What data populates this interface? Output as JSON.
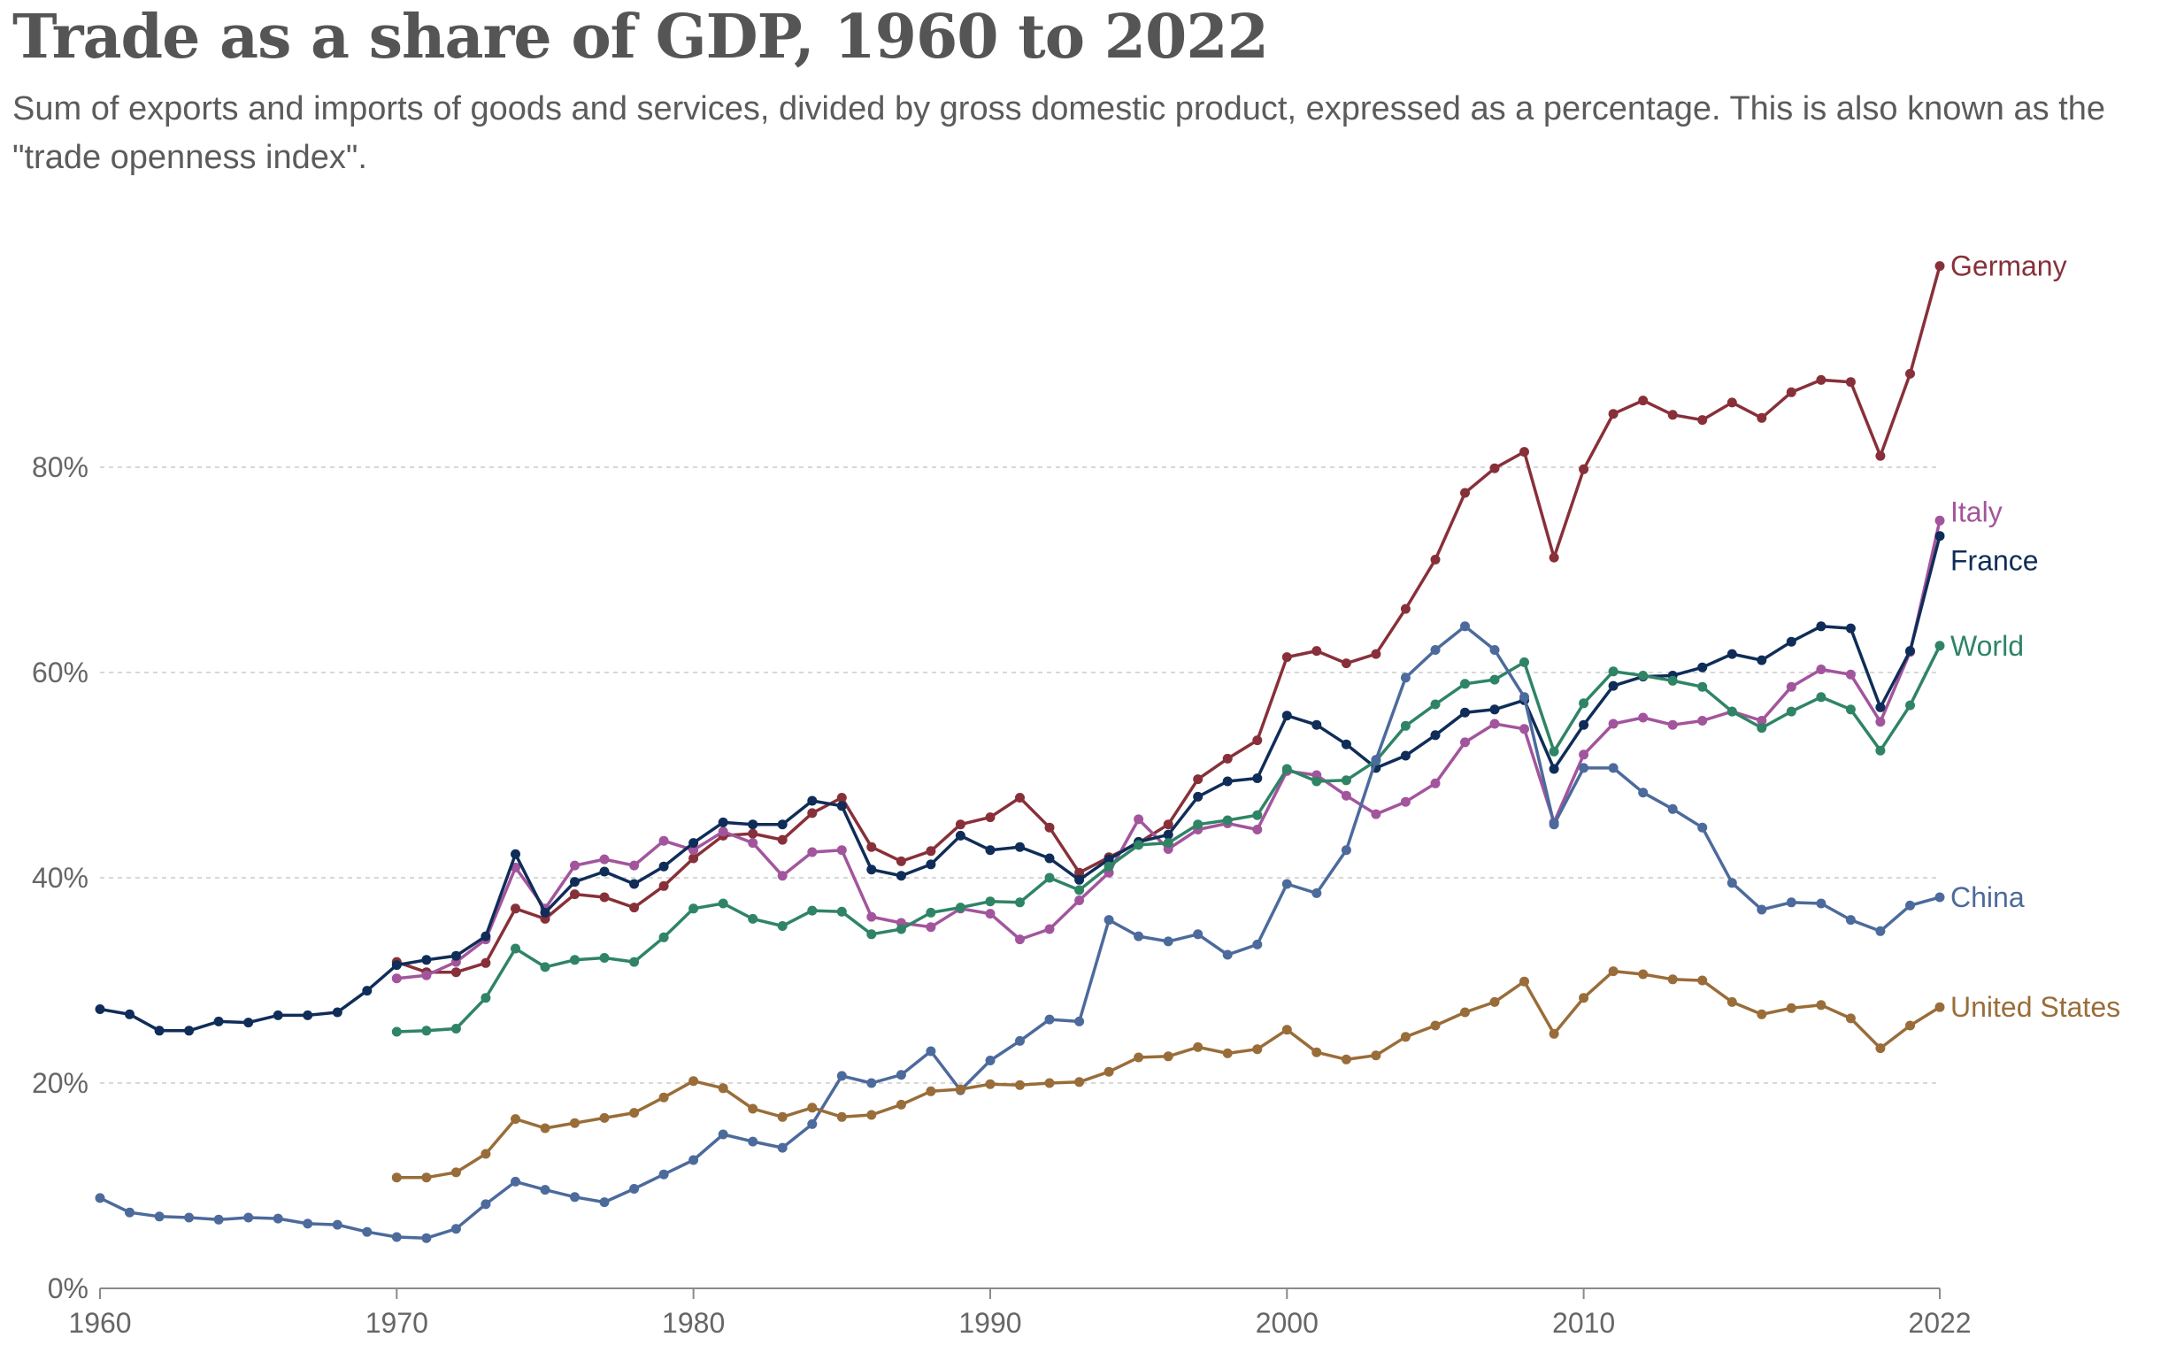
{
  "title": "Trade as a share of GDP, 1960 to 2022",
  "subtitle": "Sum of exports and imports of goods and services, divided by gross domestic product, expressed as a percentage. This is also known as the \"trade openness index\".",
  "chart_data": {
    "type": "line",
    "xlim": [
      1960,
      2022
    ],
    "ylim": [
      0,
      100
    ],
    "x_ticks": [
      1960,
      1970,
      1980,
      1990,
      2000,
      2010,
      2022
    ],
    "y_ticks": [
      0,
      20,
      40,
      60,
      80
    ],
    "y_tick_suffix": "%",
    "grid": "horizontal dashed",
    "legend": "inline labels at line ends (right)",
    "series": [
      {
        "name": "Germany",
        "color": "#883039",
        "start": 1970,
        "values": [
          31.8,
          30.8,
          30.8,
          31.7,
          37,
          36,
          38.4,
          38.1,
          37.1,
          39.2,
          41.9,
          44.1,
          44.3,
          43.7,
          46.3,
          47.8,
          43,
          41.6,
          42.6,
          45.2,
          45.9,
          47.8,
          44.9,
          40.5,
          42,
          43.4,
          45.2,
          49.6,
          51.6,
          53.4,
          61.5,
          62.1,
          60.9,
          61.8,
          66.2,
          71.0,
          77.5,
          79.9,
          81.5,
          71.2,
          79.8,
          85.2,
          86.5,
          85.1,
          84.6,
          86.3,
          84.8,
          87.3,
          88.5,
          88.3,
          81.1,
          89.1,
          99.6
        ]
      },
      {
        "name": "Italy",
        "color": "#a2559c",
        "start": 1970,
        "values": [
          30.2,
          30.5,
          31.8,
          34.0,
          41.0,
          37.0,
          41.2,
          41.8,
          41.2,
          43.6,
          42.7,
          44.5,
          43.4,
          40.2,
          42.5,
          42.7,
          36.2,
          35.6,
          35.2,
          37.0,
          36.5,
          34.0,
          35.0,
          37.8,
          40.5,
          45.7,
          42.8,
          44.7,
          45.3,
          44.7,
          50.4,
          50.0,
          48.0,
          46.2,
          47.4,
          49.2,
          53.2,
          55.0,
          54.5,
          45.4,
          52.0,
          55.0,
          55.6,
          54.9,
          55.3,
          56.2,
          55.3,
          58.6,
          60.3,
          59.8,
          55.2,
          62.0,
          74.8
        ]
      },
      {
        "name": "France",
        "color": "#0f2d58",
        "start": 1960,
        "values": [
          27.2,
          26.7,
          25.1,
          25.1,
          26.0,
          25.9,
          26.6,
          26.6,
          26.9,
          29.0,
          31.5,
          32.0,
          32.4,
          34.3,
          42.3,
          36.6,
          39.6,
          40.6,
          39.4,
          41.1,
          43.4,
          45.4,
          45.2,
          45.2,
          47.5,
          47.0,
          40.8,
          40.2,
          41.3,
          44.1,
          42.7,
          43.0,
          41.9,
          39.8,
          41.8,
          43.5,
          44.2,
          47.9,
          49.4,
          49.7,
          55.8,
          54.9,
          53.0,
          50.7,
          51.9,
          53.9,
          56.1,
          56.4,
          57.3,
          50.6,
          54.9,
          58.7,
          59.6,
          59.7,
          60.5,
          61.8,
          61.2,
          63.0,
          64.5,
          64.3,
          56.6,
          62.1,
          73.3
        ]
      },
      {
        "name": "World",
        "color": "#2f8465",
        "start": 1970,
        "values": [
          25.0,
          25.1,
          25.3,
          28.3,
          33.1,
          31.3,
          32.0,
          32.2,
          31.8,
          34.2,
          37.0,
          37.5,
          36.0,
          35.3,
          36.8,
          36.7,
          34.5,
          35.0,
          36.6,
          37.1,
          37.7,
          37.6,
          40.0,
          38.8,
          41.1,
          43.2,
          43.4,
          45.2,
          45.6,
          46.1,
          50.6,
          49.4,
          49.5,
          51.4,
          54.8,
          56.9,
          58.9,
          59.3,
          61.0,
          52.3,
          57.0,
          60.1,
          59.7,
          59.2,
          58.6,
          56.2,
          54.6,
          56.2,
          57.6,
          56.4,
          52.4,
          56.8,
          62.6
        ]
      },
      {
        "name": "China",
        "color": "#4c6a9c",
        "start": 1960,
        "values": [
          8.8,
          7.4,
          7.0,
          6.9,
          6.7,
          6.9,
          6.8,
          6.3,
          6.2,
          5.5,
          5.0,
          4.9,
          5.8,
          8.2,
          10.4,
          9.6,
          8.9,
          8.4,
          9.7,
          11.1,
          12.5,
          15.0,
          14.3,
          13.7,
          16.0,
          20.7,
          20.0,
          20.8,
          23.1,
          19.3,
          22.2,
          24.1,
          26.2,
          26.0,
          35.9,
          34.3,
          33.8,
          34.5,
          32.5,
          33.5,
          39.4,
          38.5,
          42.7,
          51.5,
          59.5,
          62.2,
          64.5,
          62.2,
          57.6,
          45.2,
          50.7,
          50.7,
          48.3,
          46.7,
          44.9,
          39.5,
          36.9,
          37.6,
          37.5,
          35.9,
          34.8,
          37.3,
          38.1
        ]
      },
      {
        "name": "United States",
        "color": "#996d39",
        "start": 1970,
        "values": [
          10.8,
          10.8,
          11.3,
          13.1,
          16.5,
          15.6,
          16.1,
          16.6,
          17.1,
          18.6,
          20.2,
          19.5,
          17.5,
          16.7,
          17.6,
          16.7,
          16.9,
          17.9,
          19.2,
          19.4,
          19.9,
          19.8,
          20.0,
          20.1,
          21.1,
          22.5,
          22.6,
          23.5,
          22.9,
          23.3,
          25.2,
          23.0,
          22.3,
          22.7,
          24.5,
          25.6,
          26.9,
          27.9,
          29.9,
          24.8,
          28.3,
          30.9,
          30.6,
          30.1,
          30.0,
          27.9,
          26.7,
          27.3,
          27.6,
          26.3,
          23.4,
          25.6,
          27.4
        ]
      }
    ]
  }
}
